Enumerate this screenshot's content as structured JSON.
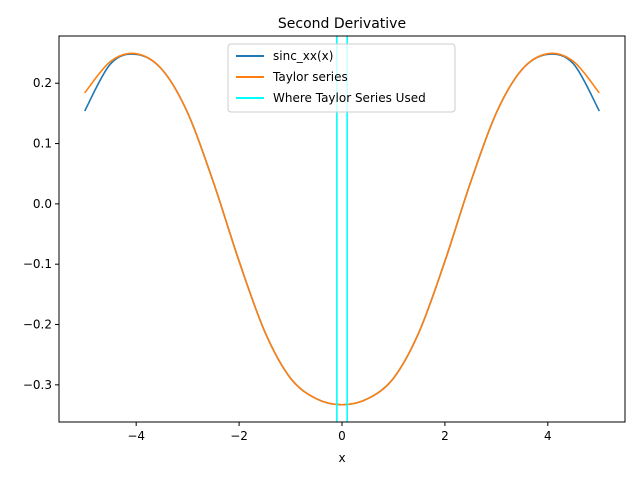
{
  "chart_data": {
    "type": "line",
    "title": "Second Derivative",
    "xlabel": "x",
    "ylabel": "",
    "xlim": [
      -5.5,
      5.5
    ],
    "ylim": [
      -0.3616,
      0.2783
    ],
    "xticks": [
      -4,
      -2,
      0,
      2,
      4
    ],
    "yticks": [
      -0.3,
      -0.2,
      -0.1,
      0.0,
      0.1,
      0.2
    ],
    "xtick_labels": [
      "−4",
      "−2",
      "0",
      "2",
      "4"
    ],
    "ytick_labels": [
      "−0.3",
      "−0.2",
      "−0.1",
      "0.0",
      "0.1",
      "0.2"
    ],
    "grid": false,
    "legend_position": "top-center",
    "series": [
      {
        "name": "sinc_xx(x)",
        "color": "#1f77b4",
        "x": [
          -5,
          -4.5,
          -4,
          -3.5,
          -3,
          -2.5,
          -2,
          -1.5,
          -1,
          -0.5,
          0,
          0.5,
          1,
          1.5,
          2,
          2.5,
          3,
          3.5,
          4,
          4.5,
          5
        ],
        "y": [
          0.154,
          0.232,
          0.248,
          0.223,
          0.151,
          0.036,
          -0.095,
          -0.212,
          -0.289,
          -0.323,
          -0.333,
          -0.323,
          -0.289,
          -0.212,
          -0.095,
          0.036,
          0.151,
          0.223,
          0.248,
          0.232,
          0.154
        ]
      },
      {
        "name": "Taylor series",
        "color": "#ff7f0e",
        "x": [
          -5,
          -4.5,
          -4,
          -3.5,
          -3,
          -2.5,
          -2,
          -1.5,
          -1,
          -0.5,
          0,
          0.5,
          1,
          1.5,
          2,
          2.5,
          3,
          3.5,
          4,
          4.5,
          5
        ],
        "y": [
          0.184,
          0.236,
          0.249,
          0.223,
          0.151,
          0.036,
          -0.095,
          -0.212,
          -0.289,
          -0.323,
          -0.333,
          -0.323,
          -0.289,
          -0.212,
          -0.095,
          0.036,
          0.151,
          0.223,
          0.249,
          0.236,
          0.184
        ]
      }
    ],
    "vlines": {
      "name": "Where Taylor Series Used",
      "color": "#00ffff",
      "x": [
        -0.1,
        0.1
      ]
    }
  }
}
